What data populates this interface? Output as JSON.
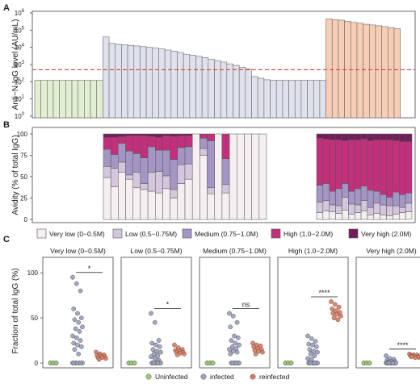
{
  "chart_data": [
    {
      "panel": "A",
      "type": "bar",
      "ylabel": "Anti−N IgG level (AU/mL)",
      "yscale": "log",
      "ylim": [
        1,
        1000000
      ],
      "yticks": [
        {
          "v": 1,
          "b": "10",
          "e": "0"
        },
        {
          "v": 10,
          "b": "10",
          "e": "1"
        },
        {
          "v": 100,
          "b": "10",
          "e": "2"
        },
        {
          "v": 1000,
          "b": "10",
          "e": "3"
        },
        {
          "v": 10000,
          "b": "10",
          "e": "4"
        },
        {
          "v": 100000,
          "b": "10",
          "e": "5"
        },
        {
          "v": 1000000,
          "b": "10",
          "e": "6"
        }
      ],
      "threshold": 500,
      "threshold_color": "#e0413a",
      "groups": [
        {
          "group": "Uninfected",
          "color": "#e1eed2",
          "values": [
            120,
            120,
            120,
            120,
            120,
            120,
            120,
            120,
            120,
            120,
            120
          ]
        },
        {
          "group": "infected",
          "color": "#dfe1ed",
          "values": [
            40000,
            17000,
            15000,
            14000,
            13000,
            12000,
            11000,
            10000,
            9000,
            8000,
            7000,
            6000,
            5000,
            4000,
            3500,
            3000,
            2500,
            2000,
            1700,
            1400,
            1100,
            900,
            700,
            550,
            200,
            160,
            130,
            120,
            120,
            120,
            120,
            120,
            120,
            120,
            120,
            120
          ]
        },
        {
          "group": "reinfected",
          "color": "#f8cdb5",
          "values": [
            450000,
            400000,
            380000,
            330000,
            280000,
            250000,
            220000,
            200000,
            180000,
            160000,
            140000,
            120000
          ]
        }
      ]
    },
    {
      "panel": "B",
      "type": "stacked-bar",
      "ylabel": "Avidity (% of total IgG)",
      "ylim": [
        0,
        100
      ],
      "yticks": [
        0,
        25,
        50,
        75,
        100
      ],
      "legend": [
        {
          "label": "Very low (0−0.5M)",
          "color": "#f5eff2"
        },
        {
          "label": "Low (0.5−0.75M)",
          "color": "#d4c6dc"
        },
        {
          "label": "Medium (0.75−1.0M)",
          "color": "#a496c4"
        },
        {
          "label": "High (1.0−2.0M)",
          "color": "#c2307c"
        },
        {
          "label": "Very high (2.0M)",
          "color": "#731e5b"
        }
      ],
      "infected_bars": [
        [
          49,
          13,
          20,
          14,
          4
        ],
        [
          38,
          22,
          16,
          20,
          4
        ],
        [
          55,
          12,
          22,
          8,
          3
        ],
        [
          47,
          5,
          28,
          18,
          2
        ],
        [
          37,
          18,
          22,
          21,
          2
        ],
        [
          35,
          7,
          30,
          26,
          2
        ],
        [
          33,
          22,
          30,
          12,
          3
        ],
        [
          31,
          25,
          25,
          15,
          4
        ],
        [
          36,
          15,
          30,
          17,
          2
        ],
        [
          25,
          10,
          35,
          27,
          3
        ],
        [
          42,
          22,
          20,
          14,
          2
        ],
        [
          47,
          18,
          20,
          13,
          2
        ],
        [
          100,
          0,
          0,
          0,
          0
        ],
        [
          75,
          8,
          12,
          5,
          0
        ],
        [
          30,
          7,
          55,
          8,
          0
        ],
        [
          100,
          0,
          0,
          0,
          0
        ],
        [
          31,
          10,
          30,
          29,
          0
        ],
        [
          100,
          0,
          0,
          0,
          0
        ],
        [
          100,
          0,
          0,
          0,
          0
        ],
        [
          100,
          0,
          0,
          0,
          0
        ],
        [
          100,
          0,
          0,
          0,
          0
        ],
        [
          100,
          0,
          0,
          0,
          0
        ]
      ],
      "reinfected_bars": [
        [
          8,
          12,
          20,
          55,
          5
        ],
        [
          10,
          12,
          20,
          52,
          6
        ],
        [
          9,
          8,
          16,
          60,
          7
        ],
        [
          7,
          9,
          20,
          57,
          7
        ],
        [
          11,
          15,
          16,
          50,
          8
        ],
        [
          6,
          12,
          15,
          60,
          7
        ],
        [
          8,
          9,
          19,
          57,
          7
        ],
        [
          10,
          12,
          17,
          55,
          6
        ],
        [
          5,
          9,
          20,
          58,
          8
        ],
        [
          7,
          12,
          14,
          60,
          7
        ],
        [
          5,
          12,
          12,
          64,
          7
        ],
        [
          4,
          12,
          10,
          67,
          7
        ],
        [
          6,
          10,
          16,
          60,
          8
        ],
        [
          8,
          6,
          15,
          62,
          9
        ],
        [
          9,
          10,
          12,
          60,
          9
        ]
      ]
    },
    {
      "panel": "C",
      "type": "scatter",
      "ylabel": "Fraction of total IgG (%)",
      "ylim": [
        0,
        110
      ],
      "yticks": [
        0,
        50,
        100
      ],
      "series_colors": {
        "Uninfected": "#98cc70",
        "infected": "#9aa0c0",
        "reinfected": "#e0795a"
      },
      "legend": [
        "Uninfected",
        "infected",
        "reinfected"
      ],
      "facets": [
        {
          "title": "Very low (0−0.5M)",
          "sig": "*",
          "uninfected": [
            0,
            0,
            0,
            0,
            0,
            0
          ],
          "infected": [
            95,
            88,
            80,
            60,
            55,
            50,
            48,
            45,
            40,
            38,
            35,
            30,
            28,
            25,
            22,
            20,
            18,
            15,
            10,
            0,
            0,
            0,
            0,
            0,
            0,
            0
          ],
          "reinfected": [
            12,
            10,
            9,
            8,
            8,
            7,
            6,
            6,
            5,
            4
          ]
        },
        {
          "title": "Low (0.5−0.75M)",
          "sig": "*",
          "uninfected": [
            0,
            0,
            0,
            0,
            0,
            0
          ],
          "infected": [
            55,
            45,
            25,
            22,
            20,
            18,
            15,
            13,
            12,
            10,
            8,
            7,
            5,
            3,
            0,
            0,
            0,
            0,
            0,
            0,
            0,
            0
          ],
          "reinfected": [
            20,
            17,
            15,
            14,
            13,
            12,
            12,
            11,
            10,
            9
          ]
        },
        {
          "title": "Medium (0.75−1.0M)",
          "sig": "ns",
          "uninfected": [
            0,
            0,
            0,
            0,
            0,
            0
          ],
          "infected": [
            55,
            52,
            45,
            40,
            30,
            28,
            25,
            22,
            20,
            18,
            16,
            15,
            13,
            12,
            10,
            0,
            0,
            0,
            0,
            0,
            0,
            0
          ],
          "reinfected": [
            22,
            20,
            19,
            18,
            16,
            15,
            14,
            13,
            12,
            10
          ]
        },
        {
          "title": "High (1.0−2.0M)",
          "sig": "****",
          "uninfected": [
            0,
            0,
            0,
            0,
            0,
            0
          ],
          "infected": [
            30,
            27,
            24,
            21,
            20,
            18,
            15,
            13,
            12,
            10,
            8,
            5,
            4,
            0,
            0,
            0,
            0,
            0,
            0,
            0,
            0,
            0
          ],
          "reinfected": [
            68,
            65,
            62,
            60,
            58,
            56,
            55,
            54,
            52,
            50,
            48
          ]
        },
        {
          "title": "Very high (2.0M)",
          "sig": "****",
          "uninfected": [
            0,
            0,
            0,
            0,
            0,
            0
          ],
          "infected": [
            8,
            5,
            4,
            3,
            2,
            2,
            1,
            0,
            0,
            0,
            0,
            0,
            0,
            0,
            0,
            0,
            0,
            0,
            0,
            0,
            0,
            0
          ],
          "reinfected": [
            10,
            9,
            9,
            8,
            8,
            7,
            7,
            6,
            6
          ]
        }
      ]
    }
  ]
}
